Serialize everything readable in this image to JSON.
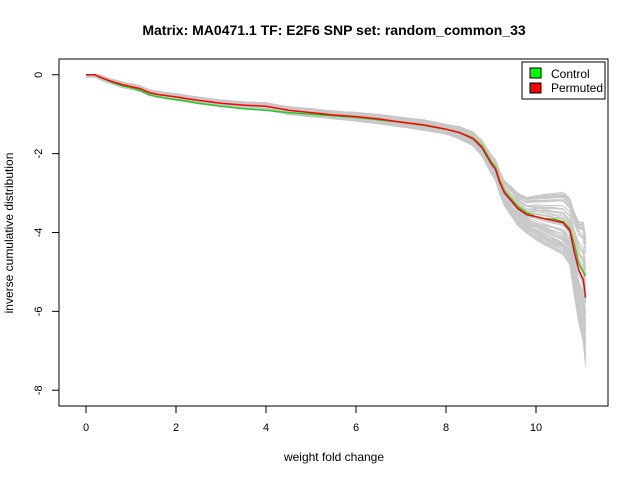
{
  "chart_data": {
    "type": "line",
    "title": "Matrix: MA0471.1 TF: E2F6 SNP set: random_common_33",
    "xlabel": "weight fold change",
    "ylabel": "inverse cumulative distribution",
    "xlim": [
      -0.6,
      11.6
    ],
    "ylim": [
      -8.4,
      0.4
    ],
    "xticks": [
      0,
      2,
      4,
      6,
      8,
      10
    ],
    "yticks": [
      0,
      -2,
      -4,
      -6,
      -8
    ],
    "grid": false,
    "legend_position": "top-right",
    "legend": [
      {
        "label": "Control",
        "color": "#00ff00"
      },
      {
        "label": "Permuted",
        "color": "#ff0000"
      }
    ],
    "background_series_color": "#c8c8c8",
    "series": [
      {
        "name": "Control",
        "color": "#22cc22",
        "x": [
          0,
          0.2,
          0.35,
          0.6,
          0.8,
          1.0,
          1.2,
          1.4,
          1.6,
          1.8,
          2.0,
          2.2,
          2.5,
          3.0,
          3.5,
          4.0,
          4.5,
          5.0,
          5.5,
          6.0,
          6.5,
          7.0,
          7.5,
          8.0,
          8.3,
          8.6,
          8.8,
          9.0,
          9.1,
          9.2,
          9.3,
          9.45,
          9.6,
          9.8,
          10.0,
          10.2,
          10.4,
          10.6,
          10.75,
          10.85,
          10.95,
          11.05,
          11.1
        ],
        "y": [
          0,
          0,
          -0.08,
          -0.2,
          -0.28,
          -0.33,
          -0.4,
          -0.5,
          -0.56,
          -0.6,
          -0.63,
          -0.66,
          -0.72,
          -0.8,
          -0.86,
          -0.9,
          -0.96,
          -1.0,
          -1.04,
          -1.08,
          -1.14,
          -1.2,
          -1.28,
          -1.38,
          -1.46,
          -1.6,
          -1.8,
          -2.2,
          -2.35,
          -2.7,
          -2.95,
          -3.15,
          -3.35,
          -3.5,
          -3.6,
          -3.65,
          -3.66,
          -3.72,
          -3.9,
          -4.3,
          -4.8,
          -5.0,
          -5.1
        ]
      },
      {
        "name": "Permuted",
        "color": "#ff0000",
        "x": [
          0,
          0.2,
          0.35,
          0.6,
          0.8,
          1.0,
          1.2,
          1.4,
          1.6,
          1.8,
          2.0,
          2.2,
          2.5,
          3.0,
          3.5,
          4.0,
          4.5,
          5.0,
          5.5,
          6.0,
          6.5,
          7.0,
          7.5,
          8.0,
          8.3,
          8.6,
          8.8,
          9.0,
          9.1,
          9.2,
          9.3,
          9.45,
          9.6,
          9.8,
          10.0,
          10.2,
          10.4,
          10.6,
          10.75,
          10.85,
          10.95,
          11.05,
          11.1
        ],
        "y": [
          0,
          0,
          -0.08,
          -0.18,
          -0.25,
          -0.3,
          -0.35,
          -0.45,
          -0.5,
          -0.53,
          -0.56,
          -0.6,
          -0.65,
          -0.72,
          -0.77,
          -0.8,
          -0.9,
          -0.96,
          -1.02,
          -1.06,
          -1.12,
          -1.2,
          -1.27,
          -1.38,
          -1.47,
          -1.62,
          -1.85,
          -2.25,
          -2.4,
          -2.75,
          -3.0,
          -3.2,
          -3.4,
          -3.55,
          -3.6,
          -3.65,
          -3.7,
          -3.75,
          -3.95,
          -4.5,
          -4.95,
          -5.2,
          -5.65
        ]
      }
    ]
  }
}
